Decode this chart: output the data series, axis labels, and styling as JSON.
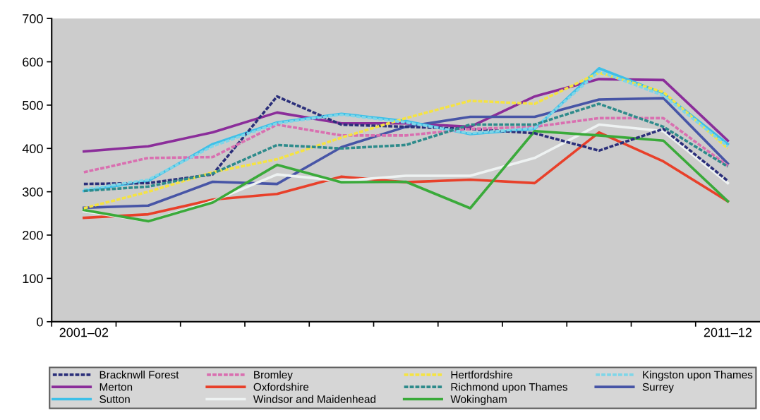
{
  "chart_data": {
    "type": "line",
    "categories": [
      "2001–02",
      null,
      null,
      null,
      null,
      null,
      null,
      null,
      null,
      null,
      "2011–12"
    ],
    "ylim": [
      0,
      700
    ],
    "yticks": [
      0,
      100,
      200,
      300,
      400,
      500,
      600,
      700
    ],
    "grid": false,
    "legend": "bottom",
    "marker": "none",
    "series": [
      {
        "name": "Bracknwll Forest",
        "color": "#2b2f7a",
        "line_style": "dashed",
        "values": [
          318,
          320,
          340,
          520,
          455,
          450,
          445,
          435,
          395,
          445,
          325
        ]
      },
      {
        "name": "Bromley",
        "color": "#d96fb0",
        "line_style": "dashed",
        "values": [
          345,
          378,
          380,
          455,
          430,
          430,
          445,
          450,
          470,
          470,
          360
        ]
      },
      {
        "name": "Hertfordshire",
        "color": "#f5e342",
        "line_style": "dashed",
        "values": [
          262,
          300,
          345,
          375,
          425,
          470,
          510,
          503,
          575,
          530,
          400
        ]
      },
      {
        "name": "Kingston upon Thames",
        "color": "#7fd6e8",
        "line_style": "dashed",
        "values": [
          305,
          328,
          405,
          458,
          478,
          460,
          435,
          447,
          578,
          522,
          405
        ]
      },
      {
        "name": "Merton",
        "color": "#8b2d9a",
        "line_style": "solid",
        "values": [
          393,
          405,
          437,
          483,
          458,
          458,
          450,
          520,
          560,
          558,
          418
        ]
      },
      {
        "name": "Oxfordshire",
        "color": "#e8402a",
        "line_style": "solid",
        "values": [
          240,
          248,
          282,
          295,
          335,
          322,
          328,
          320,
          437,
          370,
          278
        ]
      },
      {
        "name": "Richmond upon Thames",
        "color": "#2e8b8b",
        "line_style": "dashed",
        "values": [
          302,
          312,
          342,
          408,
          400,
          408,
          455,
          455,
          503,
          450,
          358
        ]
      },
      {
        "name": "Surrey",
        "color": "#4755a6",
        "line_style": "solid",
        "values": [
          263,
          268,
          323,
          318,
          403,
          450,
          473,
          473,
          513,
          516,
          365
        ]
      },
      {
        "name": "Sutton",
        "color": "#3ec0e8",
        "line_style": "solid",
        "values": [
          302,
          325,
          410,
          460,
          480,
          463,
          433,
          445,
          585,
          527,
          410
        ]
      },
      {
        "name": "Windsor and Maidenhead",
        "color": "#eef2f2",
        "line_style": "solid",
        "values": [
          255,
          232,
          278,
          340,
          325,
          337,
          337,
          378,
          455,
          440,
          320
        ]
      },
      {
        "name": "Wokingham",
        "color": "#3aaa3a",
        "line_style": "solid",
        "values": [
          258,
          232,
          275,
          362,
          322,
          323,
          262,
          440,
          430,
          418,
          278
        ]
      }
    ]
  }
}
